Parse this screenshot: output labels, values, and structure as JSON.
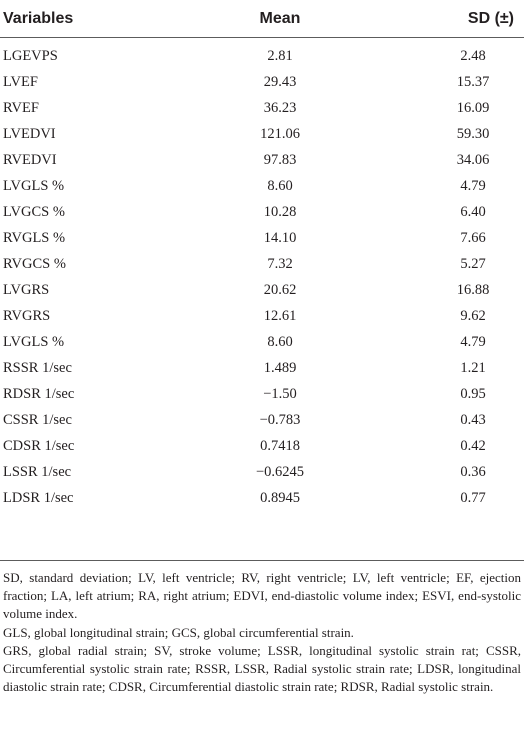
{
  "table": {
    "headers": [
      "Variables",
      "Mean",
      "SD (±)"
    ],
    "rows": [
      [
        "LGEVPS",
        "2.81",
        "2.48"
      ],
      [
        "LVEF",
        "29.43",
        "15.37"
      ],
      [
        "RVEF",
        "36.23",
        "16.09"
      ],
      [
        "LVEDVI",
        "121.06",
        "59.30"
      ],
      [
        "RVEDVI",
        "97.83",
        "34.06"
      ],
      [
        "LVGLS %",
        "8.60",
        "4.79"
      ],
      [
        "LVGCS %",
        "10.28",
        "6.40"
      ],
      [
        "RVGLS %",
        "14.10",
        "7.66"
      ],
      [
        "RVGCS %",
        "7.32",
        "5.27"
      ],
      [
        "LVGRS",
        "20.62",
        "16.88"
      ],
      [
        "RVGRS",
        "12.61",
        "9.62"
      ],
      [
        "LVGLS %",
        "8.60",
        "4.79"
      ],
      [
        "RSSR 1/sec",
        "1.489",
        "1.21"
      ],
      [
        "RDSR 1/sec",
        "−1.50",
        "0.95"
      ],
      [
        "CSSR 1/sec",
        "−0.783",
        "0.43"
      ],
      [
        "CDSR 1/sec",
        "0.7418",
        "0.42"
      ],
      [
        "LSSR 1/sec",
        "−0.6245",
        "0.36"
      ],
      [
        "LDSR 1/sec",
        "0.8945",
        "0.77"
      ]
    ]
  },
  "footnotes": [
    "SD, standard deviation; LV, left ventricle; RV, right ventricle; LV, left ventricle; EF, ejection fraction; LA, left atrium; RA, right atrium; EDVI, end-diastolic volume index; ESVI, end-systolic volume index.",
    "GLS, global longitudinal strain; GCS, global circumferential strain.",
    "GRS, global radial strain; SV, stroke volume; LSSR, longitudinal systolic strain rat; CSSR, Circumferential systolic strain rate; RSSR, LSSR, Radial systolic strain rate; LDSR, longitudinal diastolic strain rate; CDSR, Circumferential diastolic strain rate; RDSR, Radial systolic strain."
  ]
}
